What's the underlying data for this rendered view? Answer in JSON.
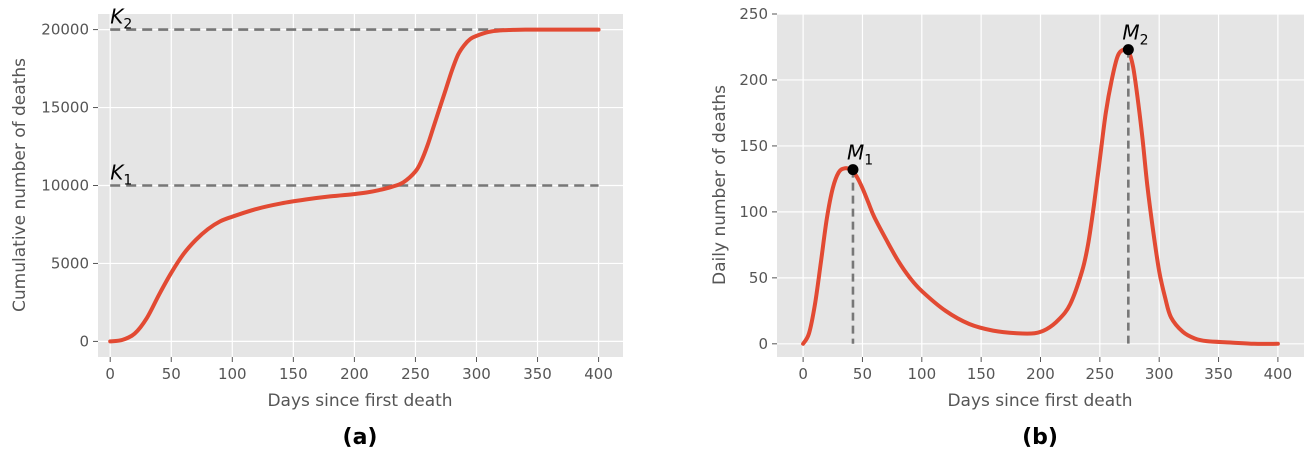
{
  "chart_data": [
    {
      "id": "a",
      "type": "line",
      "panel_label": "(a)",
      "xlabel": "Days since first death",
      "ylabel": "Cumulative number of deaths",
      "xlim": [
        -10,
        420
      ],
      "ylim": [
        -1000,
        21000
      ],
      "xticks": [
        0,
        50,
        100,
        150,
        200,
        250,
        300,
        350,
        400
      ],
      "yticks": [
        0,
        5000,
        10000,
        15000,
        20000
      ],
      "grid": true,
      "line_color": "#E24A33",
      "ref_color": "#777777",
      "series": [
        {
          "x": [
            0,
            10,
            20,
            30,
            40,
            50,
            60,
            70,
            80,
            90,
            100,
            120,
            140,
            160,
            180,
            200,
            210,
            220,
            230,
            240,
            250,
            255,
            260,
            265,
            270,
            275,
            280,
            285,
            290,
            295,
            300,
            310,
            320,
            330,
            340,
            360,
            380,
            400
          ],
          "values": [
            0,
            100,
            500,
            1500,
            3000,
            4400,
            5600,
            6500,
            7200,
            7700,
            8000,
            8500,
            8850,
            9100,
            9300,
            9450,
            9550,
            9700,
            9900,
            10200,
            10900,
            11600,
            12600,
            13800,
            15000,
            16200,
            17400,
            18400,
            19000,
            19400,
            19600,
            19850,
            19950,
            19980,
            19995,
            20000,
            20000,
            20000
          ]
        }
      ],
      "reference_lines": [
        {
          "label": "K",
          "sub": "1",
          "y": 10000,
          "x": [
            0,
            400
          ]
        },
        {
          "label": "K",
          "sub": "2",
          "y": 20000,
          "x": [
            0,
            400
          ]
        }
      ]
    },
    {
      "id": "b",
      "type": "line",
      "panel_label": "(b)",
      "xlabel": "Days since first death",
      "ylabel": "Daily number of deaths",
      "xlim": [
        -22,
        422
      ],
      "ylim": [
        -10,
        250
      ],
      "xticks": [
        0,
        50,
        100,
        150,
        200,
        250,
        300,
        350,
        400
      ],
      "yticks": [
        0,
        50,
        100,
        150,
        200,
        250
      ],
      "grid": true,
      "line_color": "#E24A33",
      "ref_color": "#777777",
      "series": [
        {
          "x": [
            0,
            5,
            10,
            15,
            20,
            25,
            30,
            35,
            40,
            45,
            50,
            55,
            60,
            70,
            80,
            90,
            100,
            120,
            140,
            160,
            180,
            195,
            205,
            215,
            225,
            235,
            240,
            245,
            250,
            255,
            260,
            265,
            270,
            274,
            278,
            282,
            286,
            290,
            295,
            300,
            305,
            310,
            320,
            330,
            340,
            360,
            380,
            400
          ],
          "values": [
            0,
            8,
            30,
            62,
            95,
            118,
            130,
            133,
            132,
            127,
            118,
            107,
            96,
            79,
            63,
            50,
            40,
            25,
            15,
            10,
            8,
            8,
            11,
            18,
            30,
            55,
            75,
            105,
            140,
            175,
            200,
            218,
            223,
            222,
            210,
            185,
            155,
            120,
            85,
            55,
            35,
            20,
            9,
            4,
            2,
            1,
            0,
            0
          ]
        }
      ],
      "markers": [
        {
          "label": "M",
          "sub": "1",
          "x": 42,
          "y": 132
        },
        {
          "label": "M",
          "sub": "2",
          "x": 274,
          "y": 223
        }
      ]
    }
  ]
}
